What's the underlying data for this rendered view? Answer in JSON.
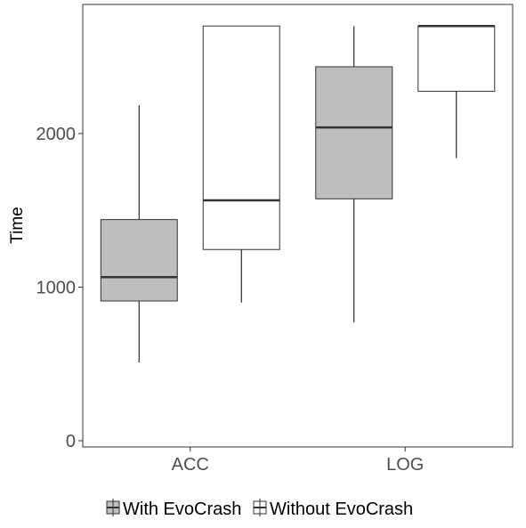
{
  "chart_data": {
    "type": "boxplot",
    "title": "",
    "xlabel": "",
    "ylabel": "Time",
    "ylim": [
      0,
      2850
    ],
    "yticks": [
      0,
      1000,
      2000
    ],
    "yticklabels": [
      "0",
      "1000",
      "2000"
    ],
    "categories": [
      "ACC",
      "LOG"
    ],
    "grid": false,
    "legend": "bottom",
    "series": [
      {
        "name": "With EvoCrash",
        "fill": "#bebebe",
        "boxes": [
          {
            "category": "ACC",
            "whisker_low": 510,
            "q1": 910,
            "median": 1065,
            "q3": 1440,
            "whisker_high": 2185
          },
          {
            "category": "LOG",
            "whisker_low": 770,
            "q1": 1575,
            "median": 2040,
            "q3": 2435,
            "whisker_high": 2700
          }
        ]
      },
      {
        "name": "Without EvoCrash",
        "fill": "#ffffff",
        "boxes": [
          {
            "category": "ACC",
            "whisker_low": 900,
            "q1": 1245,
            "median": 1565,
            "q3": 2700,
            "whisker_high": 2700
          },
          {
            "category": "LOG",
            "whisker_low": 1840,
            "q1": 2275,
            "median": 2700,
            "q3": 2700,
            "whisker_high": 2700
          }
        ]
      }
    ]
  }
}
